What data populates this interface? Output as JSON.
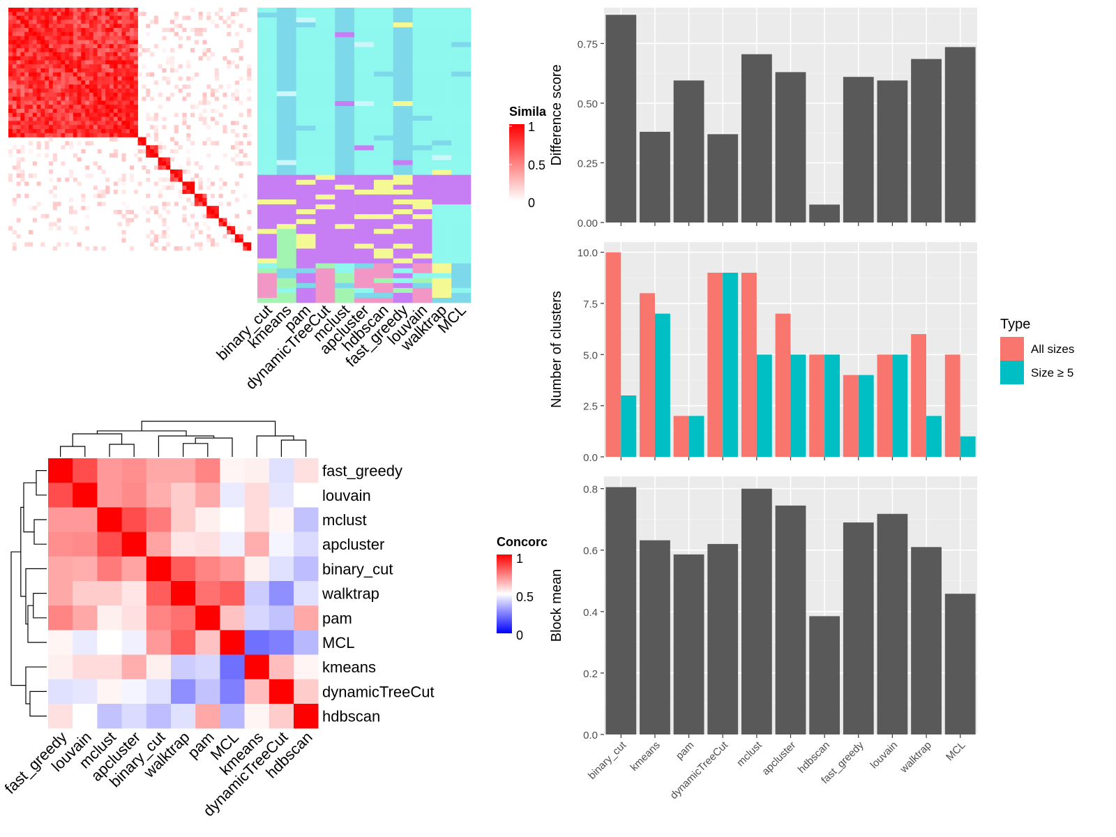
{
  "chart_data": [
    {
      "type": "heatmap",
      "id": "similarity",
      "legend": {
        "title": "Simila",
        "ticks": [
          "1",
          "0.5",
          "0"
        ],
        "colors": {
          "low": "#ffffff",
          "high": "#ff0000"
        }
      },
      "note": "cell-by-cell values not legible; block structure approximated"
    },
    {
      "type": "heatmap",
      "id": "cluster-assignments",
      "columns": [
        "binary_cut",
        "kmeans",
        "pam",
        "dynamicTreeCut",
        "mclust",
        "apcluster",
        "hdbscan",
        "fast_greedy",
        "louvain",
        "walktrap",
        "MCL"
      ],
      "palette": [
        "#8ff8ee",
        "#7dd8ea",
        "#c77df3",
        "#f5f994",
        "#a2f5b0",
        "#f296c6",
        "#cbf7fb"
      ]
    },
    {
      "type": "heatmap",
      "id": "concordance",
      "rows": [
        "fast_greedy",
        "louvain",
        "mclust",
        "apcluster",
        "binary_cut",
        "walktrap",
        "pam",
        "MCL",
        "kmeans",
        "dynamicTreeCut",
        "hdbscan"
      ],
      "columns": [
        "fast_greedy",
        "louvain",
        "mclust",
        "apcluster",
        "binary_cut",
        "walktrap",
        "pam",
        "MCL",
        "kmeans",
        "dynamicTreeCut",
        "hdbscan"
      ],
      "values": [
        [
          1.0,
          0.85,
          0.7,
          0.72,
          0.67,
          0.67,
          0.74,
          0.52,
          0.53,
          0.44,
          0.56
        ],
        [
          0.85,
          1.0,
          0.7,
          0.73,
          0.66,
          0.6,
          0.67,
          0.46,
          0.57,
          0.45,
          0.5
        ],
        [
          0.7,
          0.7,
          1.0,
          0.85,
          0.76,
          0.6,
          0.53,
          0.5,
          0.57,
          0.52,
          0.38
        ],
        [
          0.72,
          0.73,
          0.85,
          1.0,
          0.68,
          0.55,
          0.56,
          0.47,
          0.66,
          0.48,
          0.43
        ],
        [
          0.67,
          0.66,
          0.76,
          0.68,
          1.0,
          0.82,
          0.74,
          0.7,
          0.53,
          0.44,
          0.37
        ],
        [
          0.67,
          0.6,
          0.6,
          0.55,
          0.82,
          1.0,
          0.78,
          0.82,
          0.4,
          0.28,
          0.44
        ],
        [
          0.74,
          0.67,
          0.53,
          0.56,
          0.74,
          0.78,
          1.0,
          0.62,
          0.42,
          0.38,
          0.67
        ],
        [
          0.52,
          0.46,
          0.5,
          0.47,
          0.7,
          0.82,
          0.62,
          1.0,
          0.22,
          0.25,
          0.36
        ],
        [
          0.53,
          0.57,
          0.57,
          0.66,
          0.53,
          0.4,
          0.42,
          0.22,
          1.0,
          0.63,
          0.52
        ],
        [
          0.44,
          0.45,
          0.52,
          0.48,
          0.44,
          0.28,
          0.38,
          0.25,
          0.63,
          1.0,
          0.6
        ],
        [
          0.56,
          0.5,
          0.38,
          0.43,
          0.37,
          0.44,
          0.67,
          0.36,
          0.52,
          0.6,
          1.0
        ]
      ],
      "legend": {
        "title": "Concorc",
        "ticks": [
          "1",
          "0.5",
          "0"
        ],
        "colors": {
          "low": "#0000ff",
          "mid": "#ffffff",
          "high": "#ff0000"
        }
      }
    },
    {
      "type": "bar",
      "id": "difference-score",
      "categories": [
        "binary_cut",
        "kmeans",
        "pam",
        "dynamicTreeCut",
        "mclust",
        "apcluster",
        "hdbscan",
        "fast_greedy",
        "louvain",
        "walktrap",
        "MCL"
      ],
      "values": [
        0.87,
        0.38,
        0.595,
        0.37,
        0.705,
        0.63,
        0.075,
        0.61,
        0.595,
        0.685,
        0.735
      ],
      "ylabel": "Difference score",
      "ylim": [
        0,
        0.9
      ],
      "yticks": [
        "0.00",
        "0.25",
        "0.50",
        "0.75"
      ],
      "color": "#595959"
    },
    {
      "type": "bar",
      "id": "number-of-clusters",
      "categories": [
        "binary_cut",
        "kmeans",
        "pam",
        "dynamicTreeCut",
        "mclust",
        "apcluster",
        "hdbscan",
        "fast_greedy",
        "louvain",
        "walktrap",
        "MCL"
      ],
      "series": [
        {
          "name": "All sizes",
          "values": [
            10,
            8,
            2,
            9,
            9,
            7,
            5,
            4,
            5,
            6,
            5
          ],
          "color": "#f8766d"
        },
        {
          "name": "Size ≥ 5",
          "values": [
            3,
            7,
            2,
            9,
            5,
            5,
            5,
            4,
            5,
            2,
            1
          ],
          "color": "#00bfc4"
        }
      ],
      "ylabel": "Number of clusters",
      "ylim": [
        0,
        10.5
      ],
      "yticks": [
        "0.0",
        "2.5",
        "5.0",
        "7.5",
        "10.0"
      ],
      "legend_title": "Type",
      "legend_position": "right"
    },
    {
      "type": "bar",
      "id": "block-mean",
      "categories": [
        "binary_cut",
        "kmeans",
        "pam",
        "dynamicTreeCut",
        "mclust",
        "apcluster",
        "hdbscan",
        "fast_greedy",
        "louvain",
        "walktrap",
        "MCL"
      ],
      "values": [
        0.805,
        0.632,
        0.586,
        0.62,
        0.8,
        0.745,
        0.385,
        0.69,
        0.718,
        0.61,
        0.458
      ],
      "ylabel": "Block mean",
      "ylim": [
        0,
        0.84
      ],
      "yticks": [
        "0.0",
        "0.2",
        "0.4",
        "0.6",
        "0.8"
      ],
      "color": "#595959"
    }
  ]
}
